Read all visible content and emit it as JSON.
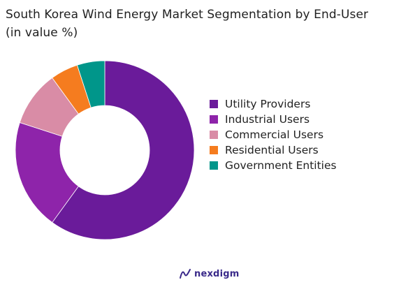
{
  "chart_data": {
    "type": "pie",
    "title": "South Korea Wind Energy Market Segmentation by End-User",
    "subtitle": "(in value %)",
    "donut": true,
    "categories": [
      "Utility Providers",
      "Industrial Users",
      "Commercial Users",
      "Residential Users",
      "Government Entities"
    ],
    "values": [
      60,
      20,
      10,
      5,
      5
    ],
    "colors": [
      "#6a1b9a",
      "#8e24aa",
      "#d98ca6",
      "#f57c1f",
      "#00968a"
    ],
    "legend_position": "right"
  },
  "brand": {
    "logo_text": "nexdigm"
  }
}
